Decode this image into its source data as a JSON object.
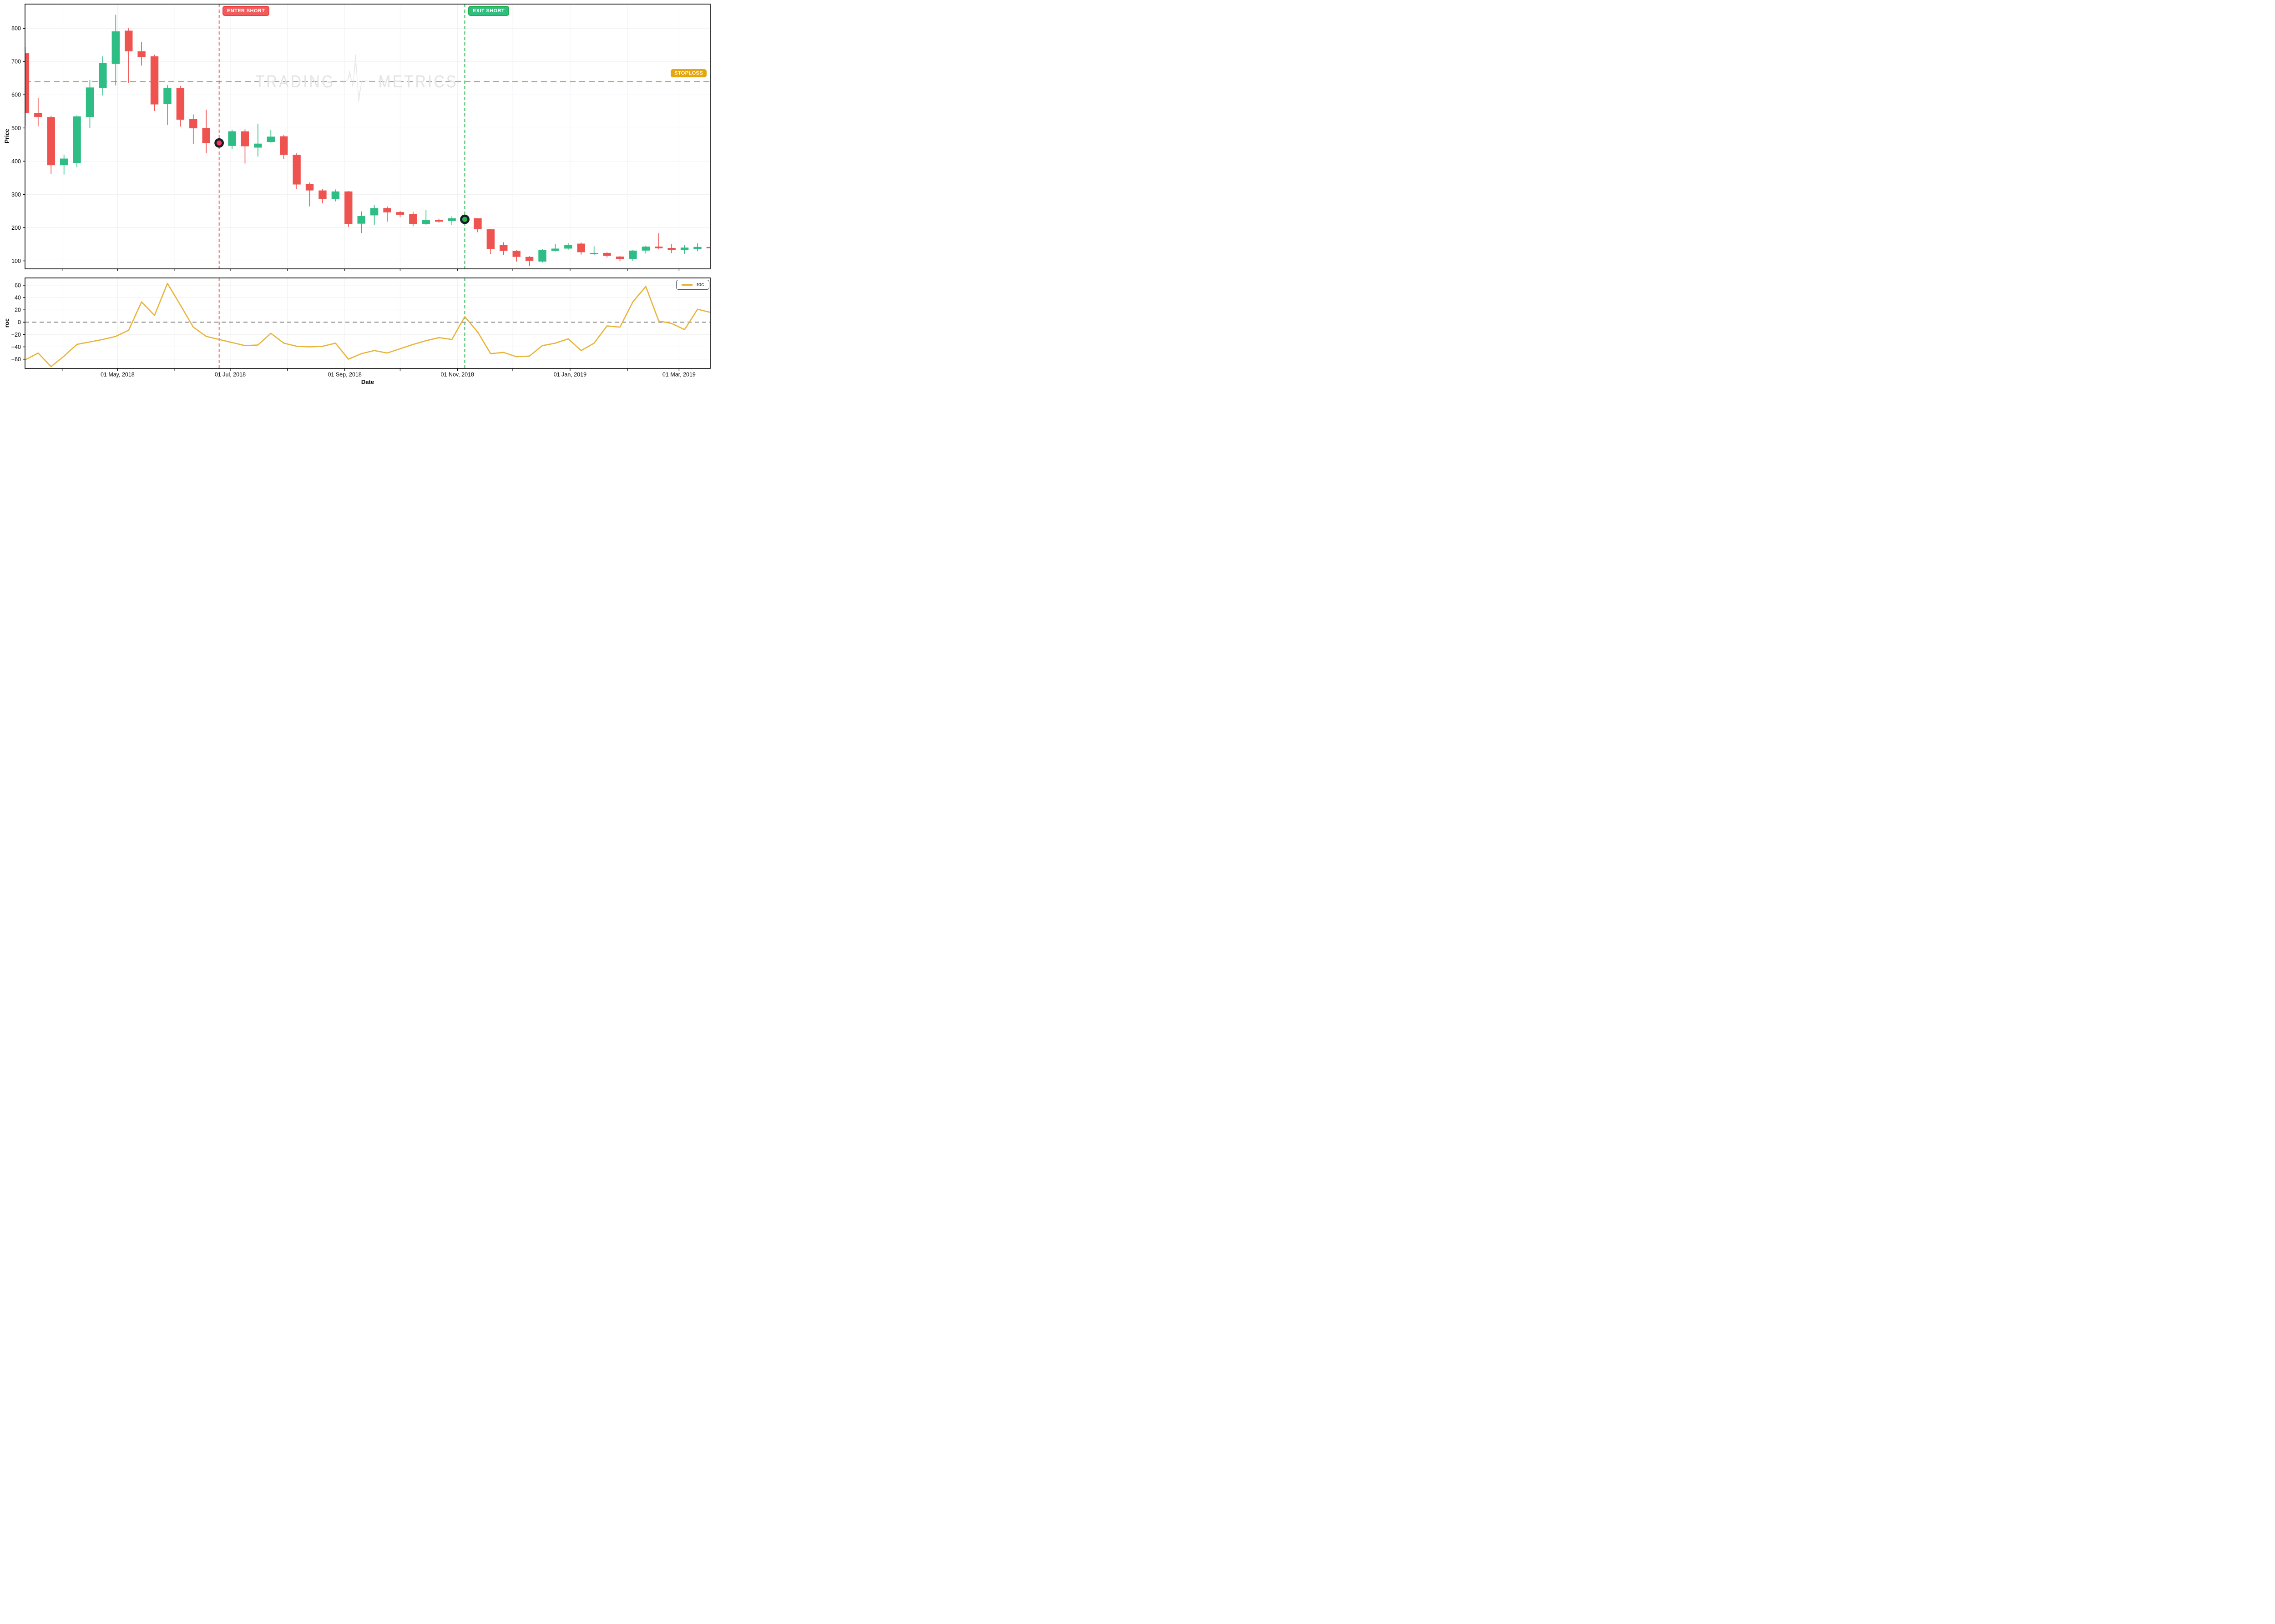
{
  "watermark": {
    "left": "TRADING",
    "right": "METRICS"
  },
  "axes": {
    "price_title": "Price",
    "roc_title": "roc",
    "x_title": "Date"
  },
  "legend": {
    "label": "roc",
    "series_color": "#e8b339"
  },
  "annotations": {
    "enter_short": {
      "label": "ENTER SHORT",
      "index": 15,
      "date": "2018-06-25",
      "price": 455,
      "color": "#ee4040",
      "marker": "#ef3b4c"
    },
    "exit_short": {
      "label": "EXIT SHORT",
      "index": 34,
      "date": "2018-11-05",
      "price": 225,
      "color": "#1db04b",
      "marker": "#28b446"
    },
    "stoploss": {
      "label": "STOPLOSS",
      "price": 640,
      "color": "#e5a70e"
    }
  },
  "chart_data": {
    "type": "candlestick",
    "xlabel": "Date",
    "price_panel": {
      "ylabel": "Price",
      "yticks": [
        800,
        700,
        600,
        500,
        400,
        300,
        200,
        100
      ],
      "ylim": [
        76,
        873
      ],
      "grid": true
    },
    "roc_panel": {
      "ylabel": "roc",
      "yticks": [
        60,
        40,
        20,
        0,
        -20,
        -40,
        -60
      ],
      "ylim": [
        -75,
        72
      ],
      "zero_line": 0,
      "legend_position": "top-right",
      "grid": true
    },
    "months": [
      {
        "d": 20,
        "label": ""
      },
      {
        "d": 50,
        "label": "01 May, 2018"
      },
      {
        "d": 81,
        "label": ""
      },
      {
        "d": 111,
        "label": "01 Jul, 2018"
      },
      {
        "d": 142,
        "label": ""
      },
      {
        "d": 173,
        "label": "01 Sep, 2018"
      },
      {
        "d": 203,
        "label": ""
      },
      {
        "d": 234,
        "label": "01 Nov, 2018"
      },
      {
        "d": 264,
        "label": ""
      },
      {
        "d": 295,
        "label": "01 Jan, 2019"
      },
      {
        "d": 326,
        "label": ""
      },
      {
        "d": 354,
        "label": "01 Mar, 2019"
      }
    ],
    "candles": {
      "dates": [
        "2018-03-12",
        "2018-03-19",
        "2018-03-26",
        "2018-04-02",
        "2018-04-09",
        "2018-04-16",
        "2018-04-23",
        "2018-04-30",
        "2018-05-07",
        "2018-05-14",
        "2018-05-21",
        "2018-05-28",
        "2018-06-04",
        "2018-06-11",
        "2018-06-18",
        "2018-06-25",
        "2018-07-02",
        "2018-07-09",
        "2018-07-16",
        "2018-07-23",
        "2018-07-30",
        "2018-08-06",
        "2018-08-13",
        "2018-08-20",
        "2018-08-27",
        "2018-09-03",
        "2018-09-10",
        "2018-09-17",
        "2018-09-24",
        "2018-10-01",
        "2018-10-08",
        "2018-10-15",
        "2018-10-22",
        "2018-10-29",
        "2018-11-05",
        "2018-11-12",
        "2018-11-19",
        "2018-11-26",
        "2018-12-03",
        "2018-12-10",
        "2018-12-17",
        "2018-12-24",
        "2018-12-31",
        "2019-01-07",
        "2019-01-14",
        "2019-01-21",
        "2019-01-28",
        "2019-02-04",
        "2019-02-11",
        "2019-02-18",
        "2019-02-25",
        "2019-03-04",
        "2019-03-11",
        "2019-03-18"
      ],
      "open": [
        725,
        545,
        533,
        388,
        395,
        533,
        620,
        693,
        793,
        731,
        716,
        572,
        620,
        527,
        500,
        460,
        446,
        490,
        441,
        458,
        475,
        419,
        331,
        312,
        286,
        309,
        212,
        237,
        259,
        247,
        241,
        211,
        223,
        220,
        226,
        228,
        195,
        148,
        130,
        112,
        98,
        130,
        137,
        152,
        120,
        124,
        113,
        106,
        131,
        143,
        139,
        133,
        136,
        142
      ],
      "high": [
        743,
        590,
        537,
        420,
        538,
        645,
        716,
        841,
        800,
        758,
        721,
        629,
        627,
        541,
        555,
        470,
        495,
        497,
        513,
        494,
        479,
        424,
        336,
        317,
        315,
        310,
        249,
        269,
        264,
        251,
        248,
        254,
        227,
        234,
        232,
        229,
        196,
        156,
        132,
        114,
        136,
        151,
        153,
        155,
        144,
        126,
        115,
        133,
        146,
        183,
        150,
        148,
        153,
        151
      ],
      "low": [
        505,
        505,
        362,
        360,
        382,
        500,
        598,
        628,
        635,
        688,
        551,
        509,
        504,
        452,
        425,
        438,
        437,
        393,
        414,
        456,
        406,
        317,
        264,
        273,
        279,
        202,
        184,
        209,
        218,
        231,
        204,
        209,
        215,
        208,
        218,
        186,
        120,
        118,
        98,
        84,
        95,
        128,
        134,
        119,
        117,
        110,
        99,
        100,
        122,
        135,
        123,
        121,
        129,
        128
      ],
      "close": [
        545,
        533,
        388,
        408,
        535,
        622,
        695,
        791,
        731,
        714,
        571,
        620,
        525,
        499,
        455,
        452,
        490,
        445,
        453,
        474,
        419,
        330,
        312,
        286,
        309,
        211,
        235,
        259,
        246,
        239,
        211,
        223,
        218,
        228,
        224,
        195,
        136,
        130,
        112,
        100,
        133,
        137,
        148,
        126,
        124,
        115,
        106,
        131,
        143,
        138,
        133,
        140,
        142,
        138
      ]
    },
    "roc": [
      -61,
      -50,
      -72,
      -55,
      -36,
      -32,
      -28,
      -23,
      -13,
      33,
      11,
      63,
      28,
      -8,
      -23,
      -28,
      -33,
      -38,
      -37,
      -18,
      -34,
      -39,
      -40,
      -39,
      -34,
      -60,
      -51,
      -46,
      -50,
      -43,
      -36,
      -30,
      -25,
      -28,
      9,
      -16,
      -51,
      -49,
      -56,
      -55,
      -38,
      -34,
      -27,
      -46,
      -34,
      -6,
      -8,
      33,
      58,
      2,
      -2,
      -12,
      21,
      16
    ],
    "colors": {
      "up": "#2ebd85",
      "down": "#ef5350",
      "roc_line": "#e8b339",
      "stoploss_line": "#e5a70e",
      "enter_line": "#ee4040",
      "exit_line": "#1db04b",
      "zero_line": "#9a9a9a",
      "grid": "#efefef",
      "spine": "#000000",
      "watermark": "#e3e3e3",
      "marker_ring": "#171b2c"
    }
  }
}
